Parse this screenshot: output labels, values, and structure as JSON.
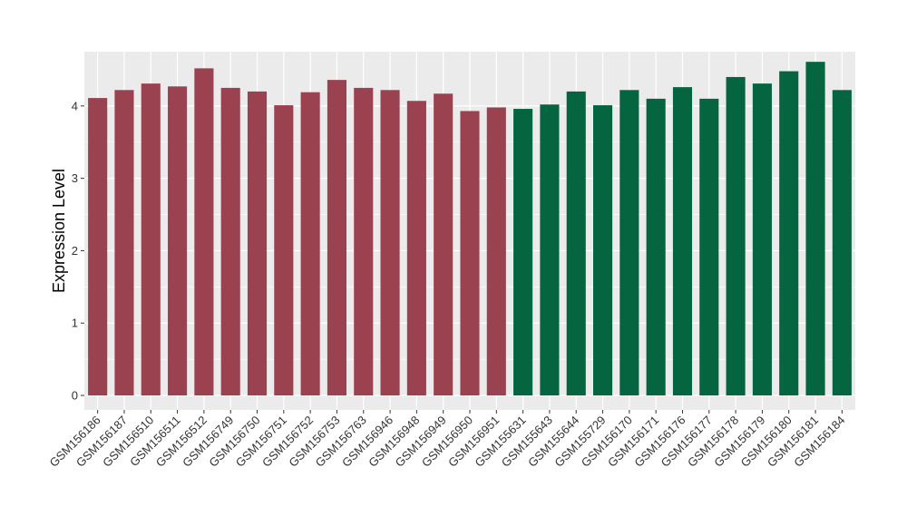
{
  "chart_data": {
    "type": "bar",
    "title": "",
    "xlabel": "",
    "ylabel": "Expression Level",
    "ylim": [
      -0.2,
      4.75
    ],
    "yticks": [
      0,
      1,
      2,
      3,
      4
    ],
    "grid": true,
    "colors": {
      "group1": "#9b4251",
      "group2": "#066541",
      "panel": "#ebebeb",
      "gridline": "#ffffff"
    },
    "categories": [
      "GSM156186",
      "GSM156187",
      "GSM156510",
      "GSM156511",
      "GSM156512",
      "GSM156749",
      "GSM156750",
      "GSM156751",
      "GSM156752",
      "GSM156753",
      "GSM156763",
      "GSM156946",
      "GSM156948",
      "GSM156949",
      "GSM156950",
      "GSM156951",
      "GSM155631",
      "GSM155643",
      "GSM155644",
      "GSM155729",
      "GSM156170",
      "GSM156171",
      "GSM156176",
      "GSM156177",
      "GSM156178",
      "GSM156179",
      "GSM156180",
      "GSM156181",
      "GSM156184"
    ],
    "values": [
      4.11,
      4.22,
      4.31,
      4.27,
      4.52,
      4.25,
      4.2,
      4.01,
      4.19,
      4.36,
      4.25,
      4.22,
      4.07,
      4.17,
      3.93,
      3.98,
      3.96,
      4.02,
      4.2,
      4.01,
      4.22,
      4.1,
      4.26,
      4.1,
      4.4,
      4.31,
      4.48,
      4.61,
      4.22
    ],
    "bar_groups": [
      {
        "count": 16,
        "color_key": "group1"
      },
      {
        "count": 13,
        "color_key": "group2"
      }
    ]
  }
}
